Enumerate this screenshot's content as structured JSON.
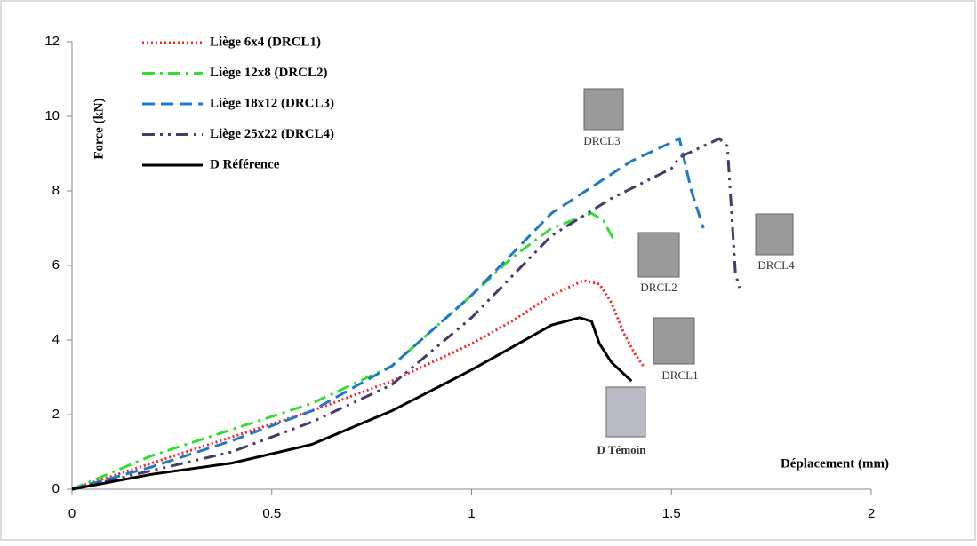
{
  "chart_data": {
    "type": "line",
    "y_label": "Force (kN)",
    "x_label": "Déplacement (mm)",
    "xlim": [
      0,
      2
    ],
    "xticks": [
      0,
      0.5,
      1,
      1.5,
      2
    ],
    "ylim": [
      0,
      12
    ],
    "yticks": [
      0,
      2,
      4,
      6,
      8,
      10,
      12
    ],
    "grid": false,
    "legend": "upper left",
    "series": [
      {
        "name": "Liège 6x4 (DRCL1)",
        "color": "#ff2020",
        "line_style": "dotted",
        "x": [
          0,
          0.2,
          0.4,
          0.6,
          0.8,
          1.0,
          1.1,
          1.2,
          1.28,
          1.32,
          1.35,
          1.38,
          1.41,
          1.43
        ],
        "values": [
          0,
          0.7,
          1.4,
          2.1,
          2.9,
          3.9,
          4.5,
          5.2,
          5.6,
          5.5,
          5.0,
          4.2,
          3.6,
          3.3
        ]
      },
      {
        "name": "Liège 12x8 (DRCL2)",
        "color": "#33dd33",
        "line_style": "dashdot",
        "x": [
          0,
          0.2,
          0.4,
          0.6,
          0.8,
          1.0,
          1.1,
          1.2,
          1.3,
          1.33,
          1.36
        ],
        "values": [
          0,
          0.9,
          1.6,
          2.3,
          3.3,
          5.2,
          6.2,
          7.0,
          7.4,
          7.2,
          6.6
        ]
      },
      {
        "name": "Liège 18x12 (DRCL3)",
        "color": "#1f78c8",
        "line_style": "dashed",
        "x": [
          0,
          0.2,
          0.4,
          0.6,
          0.8,
          1.0,
          1.2,
          1.4,
          1.5,
          1.52,
          1.55,
          1.58
        ],
        "values": [
          0,
          0.6,
          1.3,
          2.1,
          3.3,
          5.2,
          7.4,
          8.8,
          9.3,
          9.4,
          8.0,
          7.0
        ]
      },
      {
        "name": "Liège 25x22 (DRCL4)",
        "color": "#4a3a6a",
        "line_style": "dashdotdot",
        "x": [
          0,
          0.2,
          0.4,
          0.6,
          0.8,
          1.0,
          1.2,
          1.35,
          1.5,
          1.52,
          1.62,
          1.64,
          1.65,
          1.66,
          1.67
        ],
        "values": [
          0,
          0.5,
          1.0,
          1.8,
          2.8,
          4.6,
          6.8,
          7.8,
          8.6,
          8.9,
          9.4,
          9.2,
          7.5,
          5.8,
          5.4
        ]
      },
      {
        "name": "D Référence",
        "color": "#000000",
        "line_style": "solid",
        "x": [
          0,
          0.2,
          0.4,
          0.6,
          0.8,
          1.0,
          1.1,
          1.2,
          1.27,
          1.3,
          1.32,
          1.35,
          1.4
        ],
        "values": [
          0,
          0.4,
          0.7,
          1.2,
          2.1,
          3.2,
          3.8,
          4.4,
          4.6,
          4.5,
          3.9,
          3.4,
          2.9
        ]
      }
    ],
    "annotations": [
      "DRCL3",
      "DRCL2",
      "DRCL1",
      "DRCL4",
      "D Témoin"
    ]
  }
}
